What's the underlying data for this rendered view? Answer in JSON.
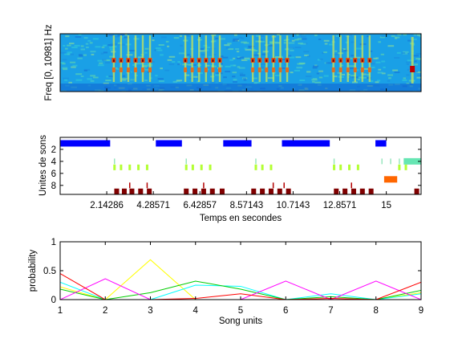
{
  "chart_data": [
    {
      "type": "heatmap",
      "ylabel": "Freq [0, 10981] Hz",
      "xlim": [
        0,
        16.6
      ],
      "song_bouts": [
        [
          2.3,
          4.3
        ],
        [
          5.6,
          7.5
        ],
        [
          8.7,
          10.6
        ],
        [
          12.4,
          14.4
        ]
      ],
      "final_call": 16.2,
      "grid": false
    },
    {
      "type": "scatter",
      "xlabel": "Temps en secondes",
      "ylabel": "Unites de sons",
      "xlim": [
        0,
        16.6
      ],
      "ylim": [
        0,
        9.5
      ],
      "y_reversed": true,
      "xtick_labels": [
        "2.14286",
        "4.28571",
        "6.42857",
        "8.57143",
        "10.7143",
        "12.8571",
        "15"
      ],
      "xtick_values": [
        2.14286,
        4.28571,
        6.42857,
        8.57143,
        10.7143,
        12.8571,
        15
      ],
      "ytick_labels": [
        "2",
        "4",
        "6",
        "8"
      ],
      "ytick_values": [
        2,
        4,
        6,
        8
      ],
      "tracks": [
        {
          "unit": 1,
          "color": "#0000ff",
          "segments": [
            [
              0,
              2.3
            ],
            [
              4.4,
              5.6
            ],
            [
              7.5,
              8.8
            ],
            [
              10.2,
              12.4
            ],
            [
              14.5,
              15.0
            ]
          ]
        },
        {
          "unit": 4,
          "color": "#99e6bf",
          "points": [
            2.5,
            5.8,
            9.0,
            12.6,
            14.8,
            15.2,
            15.6
          ]
        },
        {
          "unit": 4,
          "color": "#66e6b3",
          "segments": [
            [
              15.8,
              16.6
            ]
          ]
        },
        {
          "unit": 5,
          "color": "#b3ff33",
          "points": [
            2.5,
            2.8,
            3.2,
            3.6,
            4.0,
            5.8,
            6.1,
            6.5,
            6.9,
            9.0,
            9.3,
            9.7,
            12.6,
            12.9,
            13.3,
            13.7,
            15.6,
            15.9
          ]
        },
        {
          "unit": 7,
          "color": "#ff6600",
          "segments": [
            [
              14.9,
              15.5
            ]
          ]
        },
        {
          "unit": 8,
          "color": "#b30000",
          "points": [
            3.2,
            4.0,
            6.6,
            9.8,
            10.3,
            13.4
          ]
        },
        {
          "unit": 9,
          "color": "#800000",
          "points": [
            2.6,
            2.95,
            3.3,
            3.7,
            4.1,
            5.8,
            6.2,
            6.6,
            7.0,
            7.45,
            8.9,
            9.3,
            9.7,
            10.1,
            10.5,
            12.7,
            13.1,
            13.5,
            13.9,
            14.3,
            16.4
          ]
        }
      ],
      "grid": false
    },
    {
      "type": "line",
      "xlabel": "Song units",
      "ylabel": "probability",
      "x": [
        1,
        2,
        3,
        4,
        5,
        6,
        7,
        8,
        9
      ],
      "xlim": [
        1,
        9
      ],
      "ylim": [
        0,
        1
      ],
      "xtick_labels": [
        "1",
        "2",
        "3",
        "4",
        "5",
        "6",
        "7",
        "8",
        "9"
      ],
      "ytick_labels": [
        "0",
        "0.5",
        "1"
      ],
      "ytick_values": [
        0,
        0.5,
        1
      ],
      "series": [
        {
          "color": "#ffff00",
          "values": [
            0.22,
            0.0,
            0.69,
            0.0,
            0.0,
            0.0,
            0.0,
            0.0,
            0.12
          ]
        },
        {
          "color": "#00ffff",
          "values": [
            0.3,
            0.0,
            0.0,
            0.25,
            0.23,
            0.0,
            0.1,
            0.0,
            0.1
          ]
        },
        {
          "color": "#00cc00",
          "values": [
            0.18,
            0.0,
            0.12,
            0.32,
            0.18,
            0.0,
            0.05,
            0.0,
            0.16
          ]
        },
        {
          "color": "#ff00ff",
          "values": [
            0.0,
            0.36,
            0.0,
            0.0,
            0.0,
            0.32,
            0.0,
            0.32,
            0.0
          ]
        },
        {
          "color": "#ff0000",
          "values": [
            0.45,
            0.0,
            0.0,
            0.02,
            0.1,
            0.0,
            0.02,
            0.0,
            0.3
          ]
        },
        {
          "color": "#0000ff",
          "values": [
            0.0,
            0.0,
            0.0,
            0.0,
            0.0,
            0.0,
            0.0,
            0.0,
            0.0
          ]
        }
      ],
      "grid": false
    }
  ]
}
